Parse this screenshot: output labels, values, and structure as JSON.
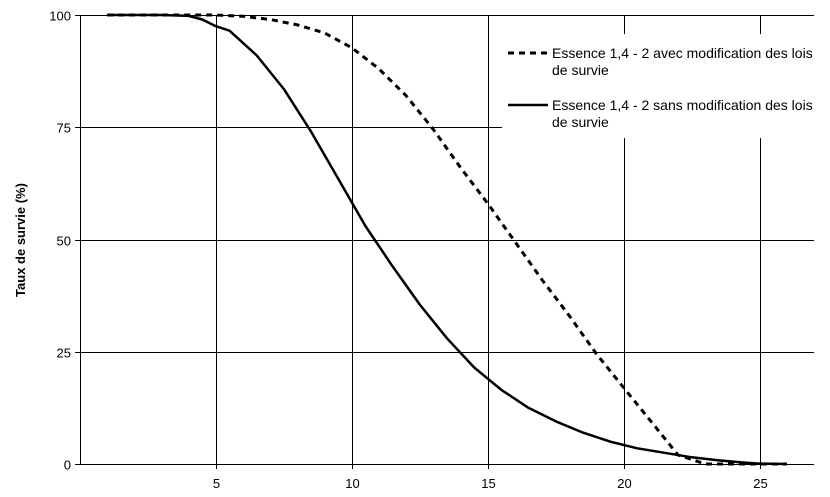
{
  "chart_data": {
    "type": "line",
    "title": "",
    "xlabel": "",
    "ylabel": "Taux de survie (%)",
    "xlim": [
      0,
      27
    ],
    "ylim": [
      0,
      100
    ],
    "x_ticks": [
      5,
      10,
      15,
      20,
      25
    ],
    "y_ticks": [
      0,
      25,
      50,
      75,
      100
    ],
    "grid": true,
    "legend_position": "top-right",
    "series": [
      {
        "name": "Essence 1,4 - 2 avec modification des lois de survie",
        "style": "dashed",
        "color": "#000000",
        "x": [
          1,
          2,
          3,
          4,
          5,
          6,
          7,
          8,
          9,
          10,
          11,
          12,
          13,
          14,
          15,
          16,
          17,
          18,
          19,
          20,
          21,
          22,
          23,
          24,
          25,
          26
        ],
        "y": [
          100,
          100,
          100,
          100,
          100,
          99.7,
          99,
          97.8,
          96,
          92.7,
          88,
          82,
          74.5,
          66,
          58,
          49.5,
          41,
          33,
          24.5,
          17,
          9.5,
          2,
          0,
          0,
          0,
          0
        ]
      },
      {
        "name": "Essence 1,4 - 2 sans modification des lois de survie",
        "style": "solid",
        "color": "#000000",
        "x": [
          1,
          2,
          3,
          4,
          4.5,
          5,
          5.5,
          6.5,
          7.5,
          8.5,
          9.5,
          10.5,
          11.5,
          12.5,
          13.5,
          14.5,
          15.5,
          16.5,
          17.5,
          18.5,
          19.5,
          20.5,
          21.5,
          22.5,
          23.5,
          24.5,
          25,
          26
        ],
        "y": [
          100,
          100,
          100,
          99.8,
          99,
          97.5,
          96.5,
          91,
          83.5,
          74,
          63.5,
          53,
          44,
          35.5,
          28,
          21.5,
          16.5,
          12.5,
          9.5,
          7,
          5,
          3.5,
          2.5,
          1.5,
          0.8,
          0.3,
          0.1,
          0
        ]
      }
    ]
  }
}
